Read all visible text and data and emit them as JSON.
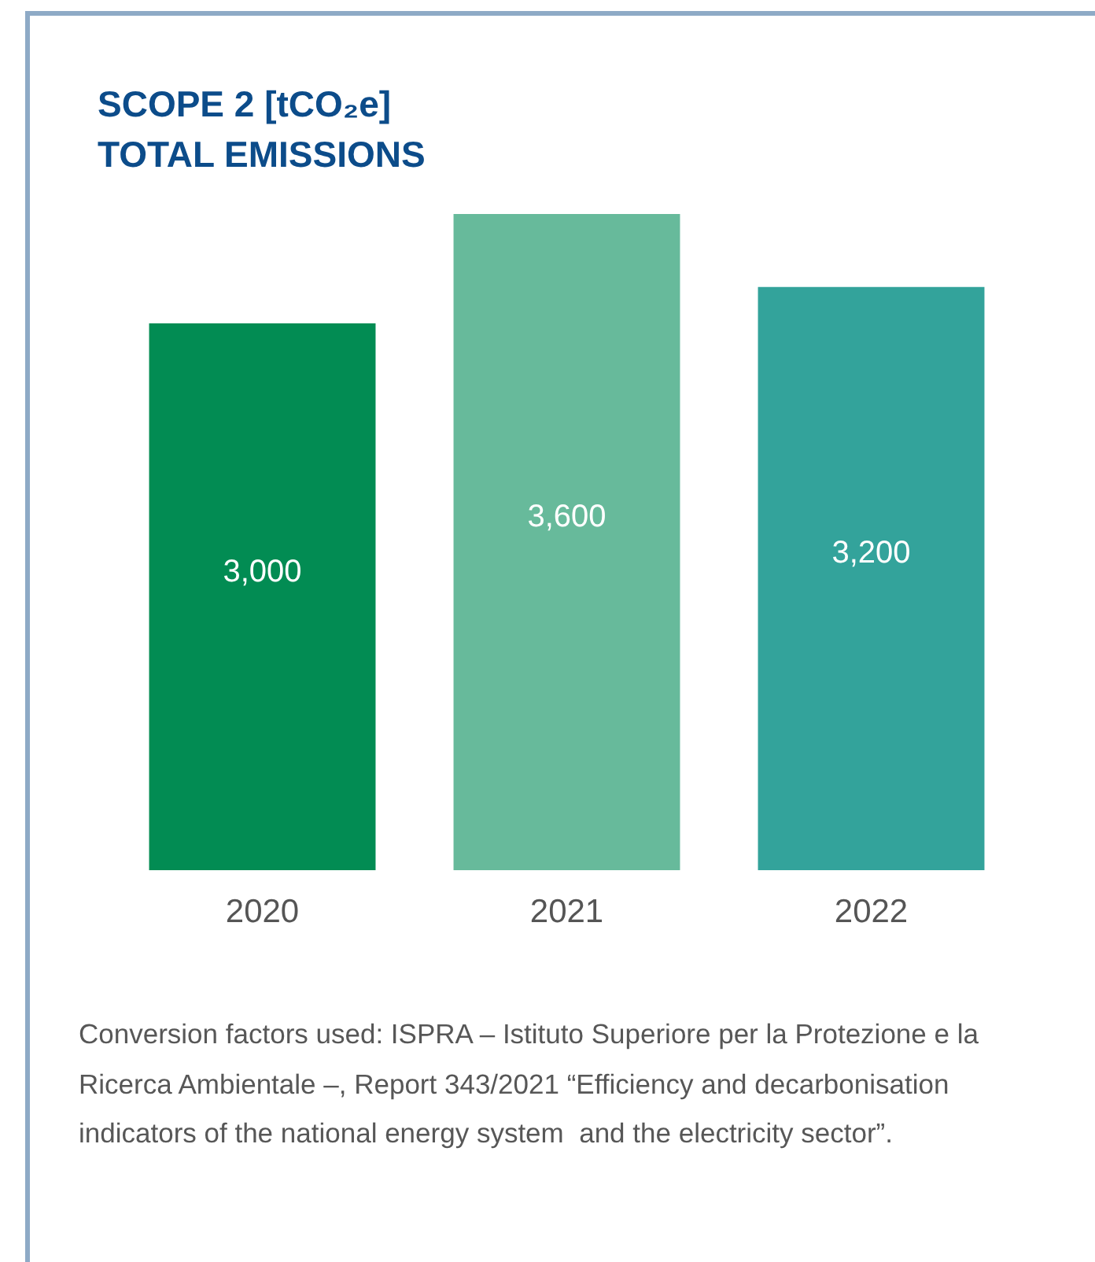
{
  "chart_data": {
    "type": "bar",
    "title": "SCOPE 2 [tCO₂e]",
    "subtitle": "TOTAL EMISSIONS",
    "categories": [
      "2020",
      "2021",
      "2022"
    ],
    "values": [
      3000,
      3600,
      3200
    ],
    "colors": [
      "#028c53",
      "#67ba9b",
      "#33a39b"
    ],
    "value_labels": [
      "3,000",
      "3,600",
      "3,200"
    ],
    "annotations": [
      "Conversion factors used: ISPRA – Istituto Superiore per la Protezione e la Ricerca Ambientale –, Report 343/2021 “Efficiency and decarbonisation indicators of the national energy system  and the electricity sector”."
    ]
  }
}
